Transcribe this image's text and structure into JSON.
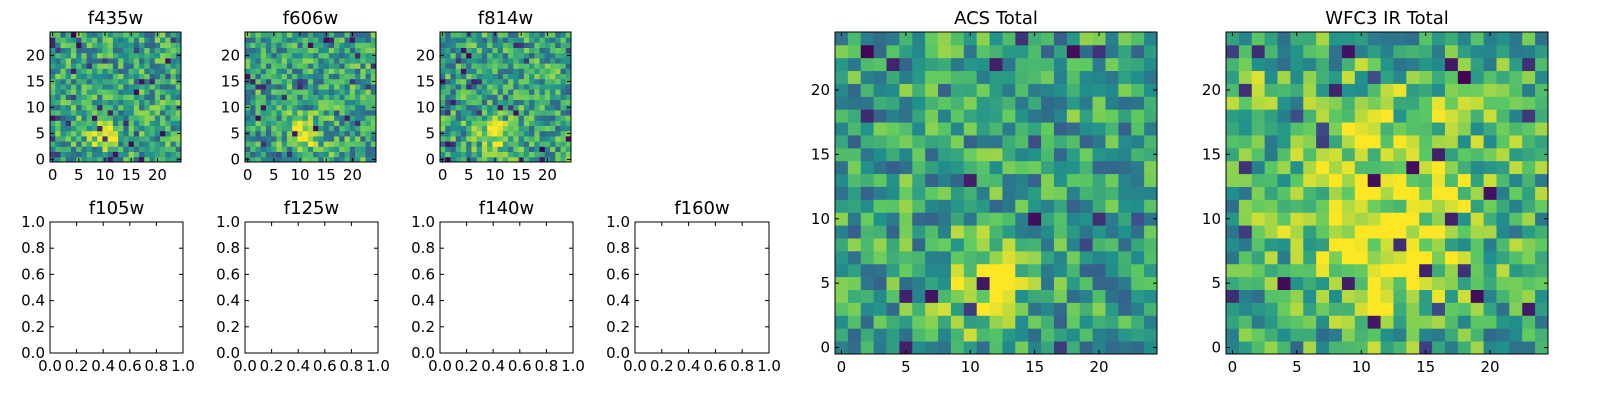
{
  "figure": {
    "background": "#ffffff",
    "colormap": "viridis",
    "colormap_stops": [
      "#440154",
      "#3b528b",
      "#21918c",
      "#5ec962",
      "#fde725"
    ]
  },
  "chart_data": [
    {
      "id": "f435w",
      "type": "heatmap",
      "title": "f435w",
      "grid_size": [
        25,
        25
      ],
      "x_ticks": [
        "0",
        "5",
        "10",
        "15",
        "20"
      ],
      "y_ticks": [
        "0",
        "5",
        "10",
        "15",
        "20"
      ],
      "xlim": [
        -0.5,
        24.5
      ],
      "ylim": [
        -0.5,
        24.5
      ],
      "noise_seed": 11,
      "bright_spots": [
        {
          "x": 10,
          "y": 5,
          "r": 2.0,
          "amp": 0.35
        }
      ],
      "dark_fraction": 0.05
    },
    {
      "id": "f606w",
      "type": "heatmap",
      "title": "f606w",
      "grid_size": [
        25,
        25
      ],
      "x_ticks": [
        "0",
        "5",
        "10",
        "15",
        "20"
      ],
      "y_ticks": [
        "0",
        "5",
        "10",
        "15",
        "20"
      ],
      "xlim": [
        -0.5,
        24.5
      ],
      "ylim": [
        -0.5,
        24.5
      ],
      "noise_seed": 23,
      "bright_spots": [
        {
          "x": 11,
          "y": 5,
          "r": 2.0,
          "amp": 0.5
        }
      ],
      "dark_fraction": 0.04
    },
    {
      "id": "f814w",
      "type": "heatmap",
      "title": "f814w",
      "grid_size": [
        25,
        25
      ],
      "x_ticks": [
        "0",
        "5",
        "10",
        "15",
        "20"
      ],
      "y_ticks": [
        "0",
        "5",
        "10",
        "15",
        "20"
      ],
      "xlim": [
        -0.5,
        24.5
      ],
      "ylim": [
        -0.5,
        24.5
      ],
      "noise_seed": 37,
      "bright_spots": [
        {
          "x": 10,
          "y": 5,
          "r": 2.0,
          "amp": 0.4
        }
      ],
      "dark_fraction": 0.05
    },
    {
      "id": "f105w",
      "type": "empty",
      "title": "f105w",
      "x_ticks": [
        "0.0",
        "0.2",
        "0.4",
        "0.6",
        "0.8",
        "1.0"
      ],
      "y_ticks": [
        "0.0",
        "0.2",
        "0.4",
        "0.6",
        "0.8",
        "1.0"
      ],
      "xlim": [
        0,
        1
      ],
      "ylim": [
        0,
        1
      ]
    },
    {
      "id": "f125w",
      "type": "empty",
      "title": "f125w",
      "x_ticks": [
        "0.0",
        "0.2",
        "0.4",
        "0.6",
        "0.8",
        "1.0"
      ],
      "y_ticks": [
        "0.0",
        "0.2",
        "0.4",
        "0.6",
        "0.8",
        "1.0"
      ],
      "xlim": [
        0,
        1
      ],
      "ylim": [
        0,
        1
      ]
    },
    {
      "id": "f140w",
      "type": "empty",
      "title": "f140w",
      "x_ticks": [
        "0.0",
        "0.2",
        "0.4",
        "0.6",
        "0.8",
        "1.0"
      ],
      "y_ticks": [
        "0.0",
        "0.2",
        "0.4",
        "0.6",
        "0.8",
        "1.0"
      ],
      "xlim": [
        0,
        1
      ],
      "ylim": [
        0,
        1
      ]
    },
    {
      "id": "f160w",
      "type": "empty",
      "title": "f160w",
      "x_ticks": [
        "0.0",
        "0.2",
        "0.4",
        "0.6",
        "0.8",
        "1.0"
      ],
      "y_ticks": [
        "0.0",
        "0.2",
        "0.4",
        "0.6",
        "0.8",
        "1.0"
      ],
      "xlim": [
        0,
        1
      ],
      "ylim": [
        0,
        1
      ]
    },
    {
      "id": "acs-total",
      "type": "heatmap",
      "title": "ACS Total",
      "grid_size": [
        25,
        25
      ],
      "x_ticks": [
        "0",
        "5",
        "10",
        "15",
        "20"
      ],
      "y_ticks": [
        "0",
        "5",
        "10",
        "15",
        "20"
      ],
      "xlim": [
        -0.5,
        24.5
      ],
      "ylim": [
        -0.5,
        24.5
      ],
      "noise_seed": 53,
      "bright_spots": [
        {
          "x": 11,
          "y": 5,
          "r": 2.2,
          "amp": 0.45
        }
      ],
      "dark_fraction": 0.04
    },
    {
      "id": "wfc3-ir-total",
      "type": "heatmap",
      "title": "WFC3 IR Total",
      "grid_size": [
        25,
        25
      ],
      "x_ticks": [
        "0",
        "5",
        "10",
        "15",
        "20"
      ],
      "y_ticks": [
        "0",
        "5",
        "10",
        "15",
        "20"
      ],
      "xlim": [
        -0.5,
        24.5
      ],
      "ylim": [
        -0.5,
        24.5
      ],
      "noise_seed": 71,
      "bright_spots": [
        {
          "x": 12,
          "y": 12,
          "r": 6.0,
          "amp": 0.35
        },
        {
          "x": 12,
          "y": 5,
          "r": 2.5,
          "amp": 0.25
        },
        {
          "x": 1,
          "y": 20,
          "r": 1.2,
          "amp": 0.3
        }
      ],
      "dark_fraction": 0.05
    }
  ]
}
